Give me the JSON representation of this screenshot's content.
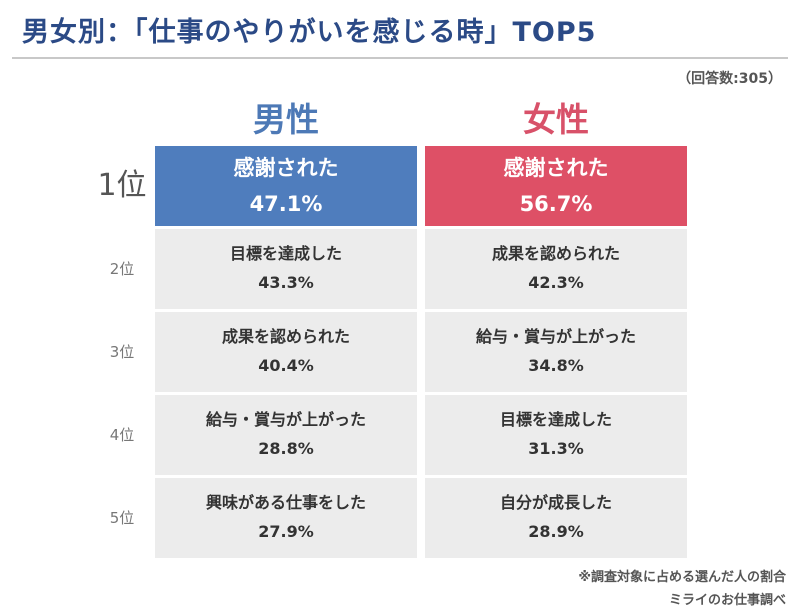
{
  "title": {
    "male_female": "男女別",
    "rest": "：「仕事のやりがいを感じる時」TOP5"
  },
  "respondents": "（回答数:305）",
  "note": "※調査対象に占める選んだ人の割合",
  "source": "ミライのお仕事調べ",
  "chart_data": {
    "type": "table",
    "columns": [
      {
        "name": "男性",
        "color": "#4f7dbd"
      },
      {
        "name": "女性",
        "color": "#de5066"
      }
    ],
    "ranks": [
      "1位",
      "2位",
      "3位",
      "4位",
      "5位"
    ],
    "male": [
      {
        "label": "感謝された",
        "value": "47.1%"
      },
      {
        "label": "目標を達成した",
        "value": "43.3%"
      },
      {
        "label": "成果を認められた",
        "value": "40.4%"
      },
      {
        "label": "給与・賞与が上がった",
        "value": "28.8%"
      },
      {
        "label": "興味がある仕事をした",
        "value": "27.9%"
      }
    ],
    "female": [
      {
        "label": "感謝された",
        "value": "56.7%"
      },
      {
        "label": "成果を認められた",
        "value": "42.3%"
      },
      {
        "label": "給与・賞与が上がった",
        "value": "34.8%"
      },
      {
        "label": "目標を達成した",
        "value": "31.3%"
      },
      {
        "label": "自分が成長した",
        "value": "28.9%"
      }
    ]
  }
}
